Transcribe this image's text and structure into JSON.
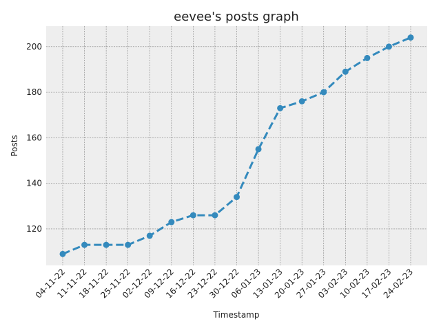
{
  "chart_data": {
    "type": "line",
    "title": "eevee's posts graph",
    "xlabel": "Timestamp",
    "ylabel": "Posts",
    "categories": [
      "04-11-22",
      "11-11-22",
      "18-11-22",
      "25-11-22",
      "02-12-22",
      "09-12-22",
      "16-12-22",
      "23-12-22",
      "30-12-22",
      "06-01-23",
      "13-01-23",
      "20-01-23",
      "27-01-23",
      "03-02-23",
      "10-02-23",
      "17-02-23",
      "24-02-23"
    ],
    "series": [
      {
        "values": [
          109,
          113,
          113,
          113,
          117,
          123,
          126,
          126,
          134,
          155,
          173,
          176,
          180,
          189,
          195,
          200,
          204
        ]
      }
    ],
    "ylim": [
      104,
      209
    ],
    "yticks": [
      120,
      140,
      160,
      180,
      200
    ],
    "grid": true,
    "line_style": "dashed",
    "marker": "circle",
    "colors": {
      "line": "#348abd",
      "plot_bg": "#eeeeee",
      "grid": "#808080"
    }
  }
}
